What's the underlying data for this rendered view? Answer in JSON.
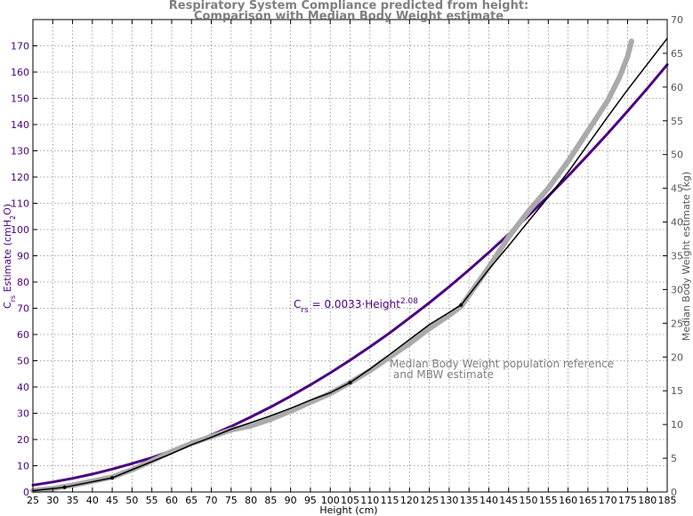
{
  "chart_data": {
    "type": "line",
    "title_line1": "Respiratory System Compliance predicted from height:",
    "title_line2": "Comparison with Median Body Weight estimate",
    "xlabel": "Height (cm)",
    "ylabel_left": "Crs Estimate (cmH2O)",
    "ylabel_right": "Median Body Weight estimate (kg)",
    "xlim": [
      25,
      185
    ],
    "ylim_left": [
      0,
      180
    ],
    "ylim_right": [
      0,
      70
    ],
    "x_ticks": [
      25,
      30,
      35,
      40,
      45,
      50,
      55,
      60,
      65,
      70,
      75,
      80,
      85,
      90,
      95,
      100,
      105,
      110,
      115,
      120,
      125,
      130,
      135,
      140,
      145,
      150,
      155,
      160,
      165,
      170,
      175,
      180,
      185
    ],
    "y_left_ticks": [
      0,
      10,
      20,
      30,
      40,
      50,
      60,
      70,
      80,
      90,
      100,
      110,
      120,
      130,
      140,
      150,
      160,
      170
    ],
    "y_right_ticks": [
      0,
      5,
      10,
      15,
      20,
      25,
      30,
      35,
      40,
      45,
      50,
      55,
      60,
      65,
      70
    ],
    "grid": true,
    "annotations": {
      "crs_prefix": "C",
      "crs_sub": "rs",
      "crs_mid": " = 0.0033·Height",
      "crs_sup": "2.08",
      "mbw_line1": "Median Body Weight population reference",
      "mbw_line2": "and MBW estimate"
    },
    "series": [
      {
        "axis": "left",
        "color": "#4b0082",
        "formula": "0.0033*x^2.08",
        "x": [
          25,
          30,
          35,
          40,
          45,
          50,
          55,
          60,
          65,
          70,
          75,
          80,
          85,
          90,
          95,
          100,
          105,
          110,
          115,
          120,
          125,
          130,
          135,
          140,
          145,
          150,
          155,
          160,
          165,
          170,
          175,
          180,
          185
        ],
        "y": [
          2.6,
          3.8,
          5.2,
          6.8,
          8.7,
          10.8,
          13.1,
          15.7,
          18.6,
          21.7,
          25.0,
          28.6,
          32.4,
          36.5,
          40.8,
          45.4,
          50.2,
          55.3,
          60.6,
          66.3,
          72.1,
          78.2,
          84.6,
          91.3,
          98.2,
          105.3,
          112.7,
          120.4,
          128.4,
          136.6,
          145.1,
          153.8,
          162.8
        ]
      },
      {
        "axis": "right",
        "color": "#aaaaaa",
        "x": [
          25,
          30,
          35,
          40,
          45,
          50,
          55,
          60,
          65,
          70,
          75,
          80,
          85,
          90,
          95,
          100,
          105,
          110,
          115,
          120,
          125,
          130,
          133,
          140,
          145,
          150,
          155,
          160,
          165,
          170,
          173,
          175,
          176
        ],
        "y": [
          0.2,
          0.5,
          1.0,
          1.6,
          2.2,
          3.3,
          4.6,
          6.0,
          7.2,
          8.2,
          9.2,
          9.8,
          10.8,
          12.0,
          13.3,
          14.6,
          16.2,
          18.0,
          20.0,
          22.0,
          24.2,
          26.2,
          27.5,
          33.3,
          37.8,
          41.6,
          45.0,
          49.0,
          53.5,
          58.0,
          61.5,
          64.5,
          66.8
        ]
      },
      {
        "axis": "right",
        "color": "#000000",
        "markers_at": [
          33,
          45,
          105,
          133
        ],
        "x": [
          25,
          33,
          45,
          50,
          55,
          60,
          65,
          70,
          75,
          80,
          85,
          90,
          95,
          100,
          105,
          110,
          115,
          120,
          125,
          133,
          140,
          145,
          150,
          155,
          160,
          165,
          170,
          175,
          180,
          185
        ],
        "y": [
          0.2,
          0.7,
          2.1,
          3.3,
          4.5,
          5.7,
          7.0,
          8.1,
          9.3,
          10.3,
          11.3,
          12.4,
          13.6,
          14.7,
          16.2,
          18.2,
          20.4,
          22.6,
          24.8,
          27.7,
          33.0,
          36.5,
          40.1,
          43.7,
          47.4,
          51.5,
          55.6,
          59.6,
          63.4,
          67.2
        ]
      }
    ]
  }
}
